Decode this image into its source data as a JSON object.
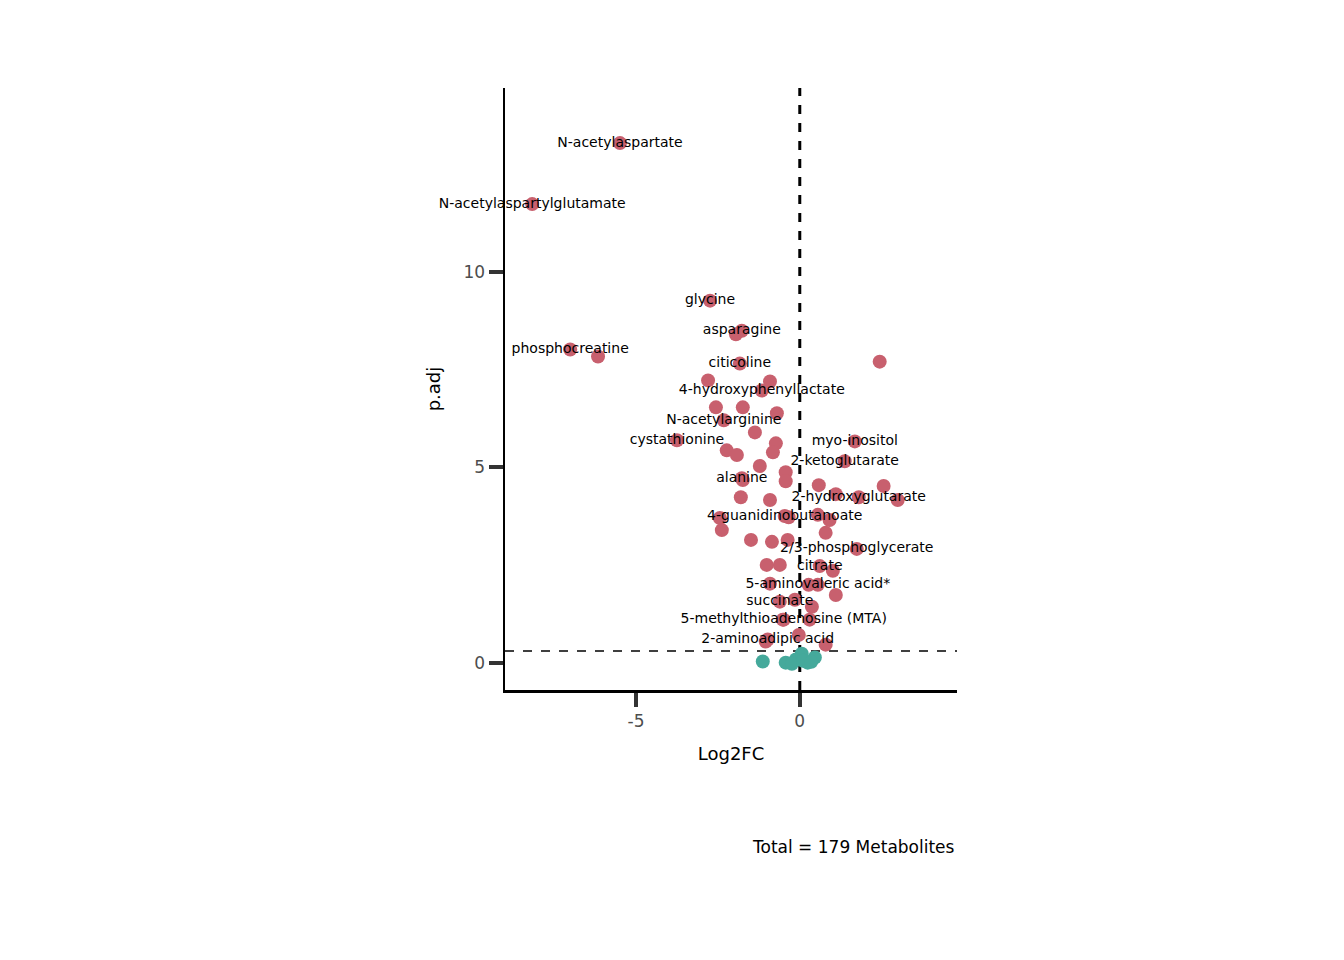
{
  "chart_data": {
    "type": "scatter",
    "x_label": "Log2FC",
    "y_label": "p.adj",
    "annotations": [
      "Total = 179 Metabolites"
    ],
    "xlim": [
      -9,
      4.8
    ],
    "ylim": [
      -0.7,
      14.7
    ],
    "xticks": [
      -5,
      0
    ],
    "yticks": [
      0,
      5,
      10
    ],
    "grid": false,
    "reference_lines": {
      "x": 0,
      "y": 0.3
    },
    "series": [
      {
        "color": "#c8606e",
        "marker": "circle",
        "x": [
          -5.49,
          -8.17,
          -2.74,
          -1.77,
          -1.95,
          -7.01,
          -6.16,
          -1.83,
          -1.16,
          -2.32,
          -3.75,
          1.68,
          1.37,
          -1.77,
          1.8,
          -0.46,
          1.74,
          0.61,
          0.55,
          -0.61,
          -0.49,
          -0.98,
          2.44,
          -2.8,
          -0.91,
          -2.56,
          -1.74,
          -0.7,
          -1.37,
          -0.73,
          -0.82,
          -2.23,
          -1.92,
          -1.22,
          -0.43,
          -1.74,
          -0.43,
          0.58,
          1.1,
          2.56,
          2.99,
          -1.8,
          -0.91,
          0.55,
          -0.34,
          -2.44,
          -2.38,
          0.91,
          -1.49,
          -0.85,
          -0.37,
          0.79,
          -1.01,
          -0.61,
          1.01,
          -0.91,
          0.27,
          1.1,
          -0.15,
          0.37,
          0.3,
          -0.52,
          -1.04,
          0.79,
          -0.03
        ],
        "y": [
          13.29,
          11.73,
          9.26,
          8.49,
          8.4,
          8.01,
          7.83,
          7.65,
          6.96,
          6.2,
          5.69,
          5.66,
          5.15,
          4.72,
          4.23,
          3.75,
          2.91,
          2.47,
          1.99,
          1.56,
          1.1,
          0.59,
          7.7,
          7.22,
          7.19,
          6.53,
          6.53,
          6.38,
          5.89,
          5.61,
          5.38,
          5.43,
          5.31,
          5.03,
          4.87,
          4.67,
          4.64,
          4.54,
          4.31,
          4.52,
          4.16,
          4.23,
          4.16,
          3.78,
          3.72,
          3.7,
          3.39,
          3.65,
          3.14,
          3.09,
          3.14,
          3.32,
          2.5,
          2.5,
          2.35,
          2.02,
          1.99,
          1.73,
          1.61,
          1.43,
          1.1,
          1.1,
          0.54,
          0.46,
          0.71
        ],
        "point_labels": [
          "N-acetylaspartate",
          "N-acetylaspartylglutamate",
          "glycine",
          "asparagine",
          null,
          "phosphocreatine",
          null,
          "citicoline",
          "4-hydroxyphenyllactate",
          "N-acetylarginine",
          "cystathionine",
          "myo-inositol",
          "2-ketoglutarate",
          "alanine",
          "2-hydroxyglutarate",
          "4-guanidinobutanoate",
          "2/3-phosphoglycerate",
          "citrate",
          "5-aminovaleric acid*",
          "succinate",
          "5-methylthioadenosine (MTA)",
          "2-aminoadipic acid",
          null,
          null,
          null,
          null,
          null,
          null,
          null,
          null,
          null,
          null,
          null,
          null,
          null,
          null,
          null,
          null,
          null,
          null,
          null,
          null,
          null,
          null,
          null,
          null,
          null,
          null,
          null,
          null,
          null,
          null,
          null,
          null,
          null,
          null,
          null,
          null,
          null,
          null,
          null,
          null,
          null,
          null,
          null
        ]
      },
      {
        "color": "#45a99b",
        "marker": "circle",
        "x": [
          -1.13,
          -0.43,
          -0.12,
          0.24,
          0.46,
          0.06,
          -0.24,
          0.1,
          0.35
        ],
        "y": [
          0.03,
          0.0,
          0.08,
          0.0,
          0.13,
          0.23,
          -0.03,
          0.05,
          0.02
        ]
      }
    ]
  }
}
